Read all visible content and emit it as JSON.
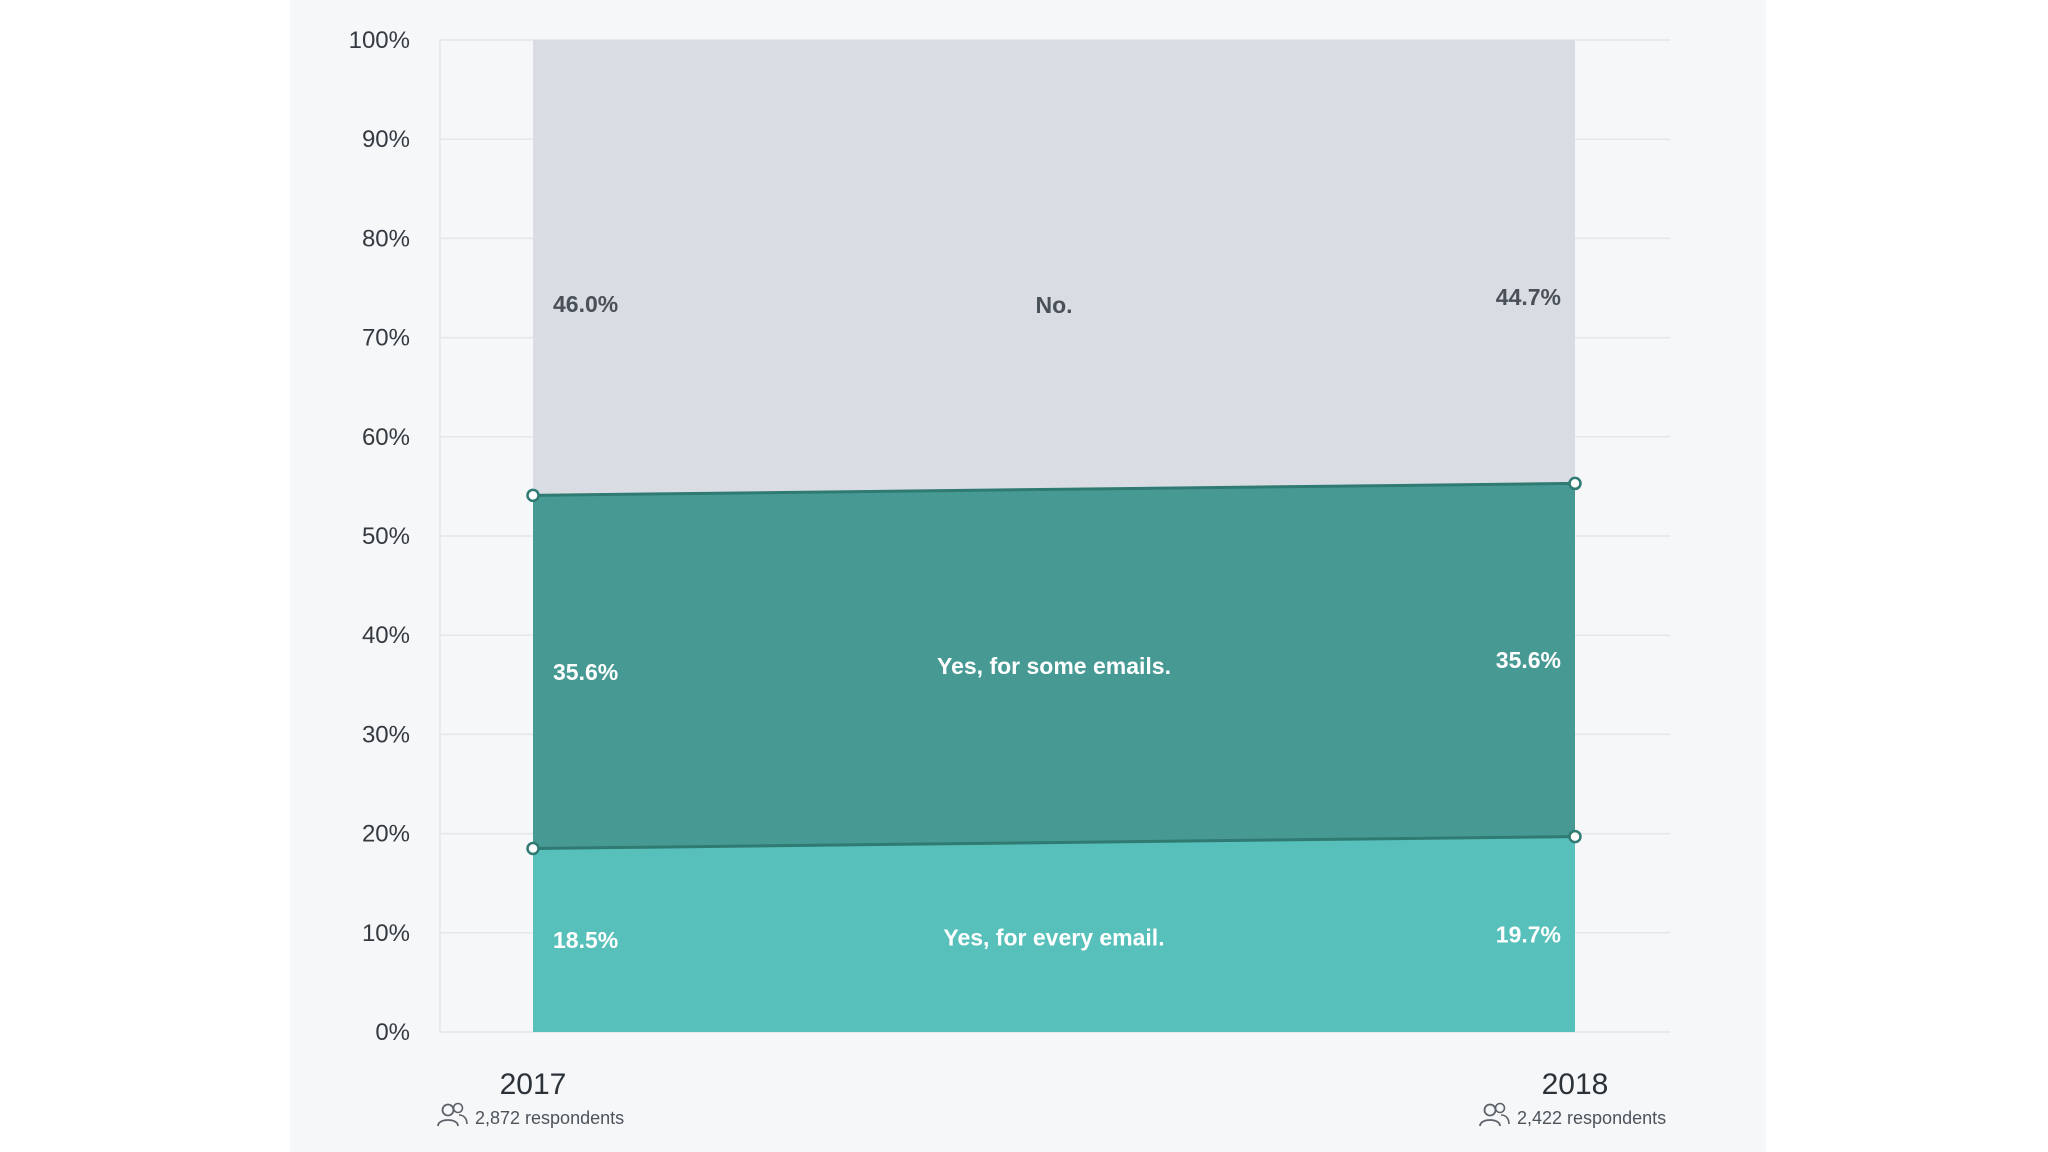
{
  "chart_data": {
    "type": "area",
    "title": "",
    "xlabel": "",
    "ylabel": "",
    "x": [
      "2017",
      "2018"
    ],
    "respondents": [
      "2,872 respondents",
      "2,422 respondents"
    ],
    "ylim": [
      0,
      100
    ],
    "yticks": [
      0,
      10,
      20,
      30,
      40,
      50,
      60,
      70,
      80,
      90,
      100
    ],
    "ytick_labels": [
      "0%",
      "10%",
      "20%",
      "30%",
      "40%",
      "50%",
      "60%",
      "70%",
      "80%",
      "90%",
      "100%"
    ],
    "stacked": true,
    "grid": true,
    "legend": "none",
    "series": [
      {
        "name": "Yes, for every email.",
        "values": [
          18.5,
          19.7
        ],
        "value_labels": [
          "18.5%",
          "19.7%"
        ],
        "color": "#58c0ba",
        "text_color": "#ffffff"
      },
      {
        "name": "Yes, for some emails.",
        "values": [
          35.6,
          35.6
        ],
        "value_labels": [
          "35.6%",
          "35.6%"
        ],
        "color": "#479a93",
        "text_color": "#ffffff"
      },
      {
        "name": "No.",
        "values": [
          46.0,
          44.7
        ],
        "value_labels": [
          "46.0%",
          "44.7%"
        ],
        "color": "#d9dde3",
        "text_color": "#4a5057"
      }
    ],
    "boundary_line_color": "#2f7a72",
    "grid_color": "#e3e6ea"
  }
}
